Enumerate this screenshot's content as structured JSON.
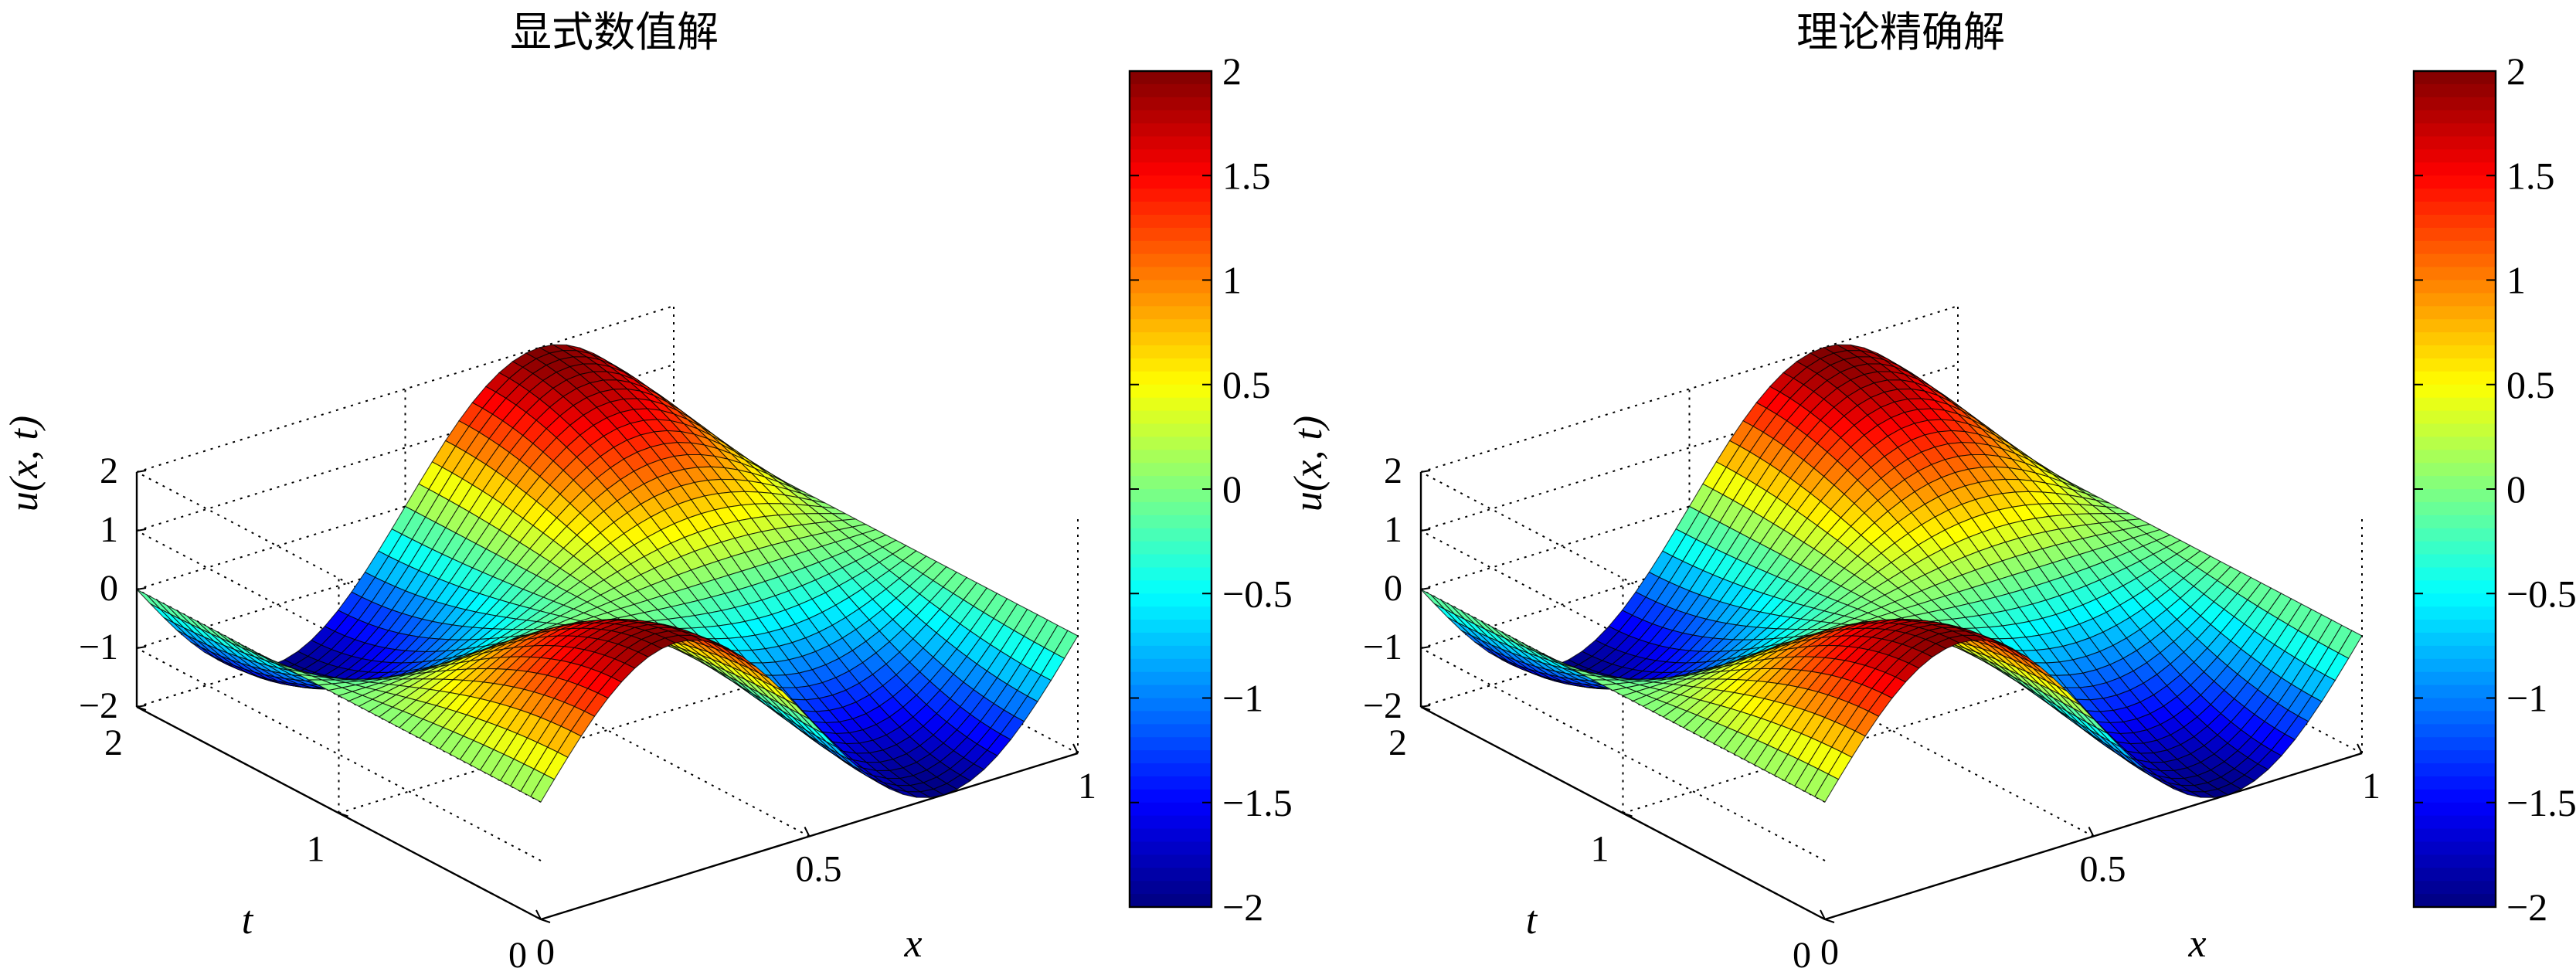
{
  "chart_data": [
    {
      "type": "surface",
      "title": "显式数值解",
      "xlabel": "x",
      "ylabel": "t",
      "zlabel": "u(x, t)",
      "xlim": [
        0,
        1
      ],
      "ylim": [
        0,
        2
      ],
      "zlim": [
        -2,
        2
      ],
      "x_ticks": [
        "0",
        "0.5",
        "1"
      ],
      "y_ticks": [
        "0",
        "1",
        "2"
      ],
      "z_ticks": [
        "−2",
        "−1",
        "0",
        "1",
        "2"
      ],
      "grid": true,
      "colormap": "jet",
      "surface_function": "u(x, t) = 2·sin(2πx)·cos(πt/2)",
      "mesh_resolution": {
        "x": 40,
        "t": 40
      },
      "colorbar": {
        "range": [
          -2,
          2
        ],
        "ticks": [
          "2",
          "1.5",
          "1",
          "0.5",
          "0",
          "−0.5",
          "−1",
          "−1.5",
          "−2"
        ]
      }
    },
    {
      "type": "surface",
      "title": "理论精确解",
      "xlabel": "x",
      "ylabel": "t",
      "zlabel": "u(x, t)",
      "xlim": [
        0,
        1
      ],
      "ylim": [
        0,
        2
      ],
      "zlim": [
        -2,
        2
      ],
      "x_ticks": [
        "0",
        "0.5",
        "1"
      ],
      "y_ticks": [
        "0",
        "1",
        "2"
      ],
      "z_ticks": [
        "−2",
        "−1",
        "0",
        "1",
        "2"
      ],
      "grid": true,
      "colormap": "jet",
      "surface_function": "u(x, t) = 2·sin(2πx)·cos(πt/2)",
      "mesh_resolution": {
        "x": 40,
        "t": 40
      },
      "colorbar": {
        "range": [
          -2,
          2
        ],
        "ticks": [
          "2",
          "1.5",
          "1",
          "0.5",
          "0",
          "−0.5",
          "−1",
          "−1.5",
          "−2"
        ]
      }
    }
  ]
}
